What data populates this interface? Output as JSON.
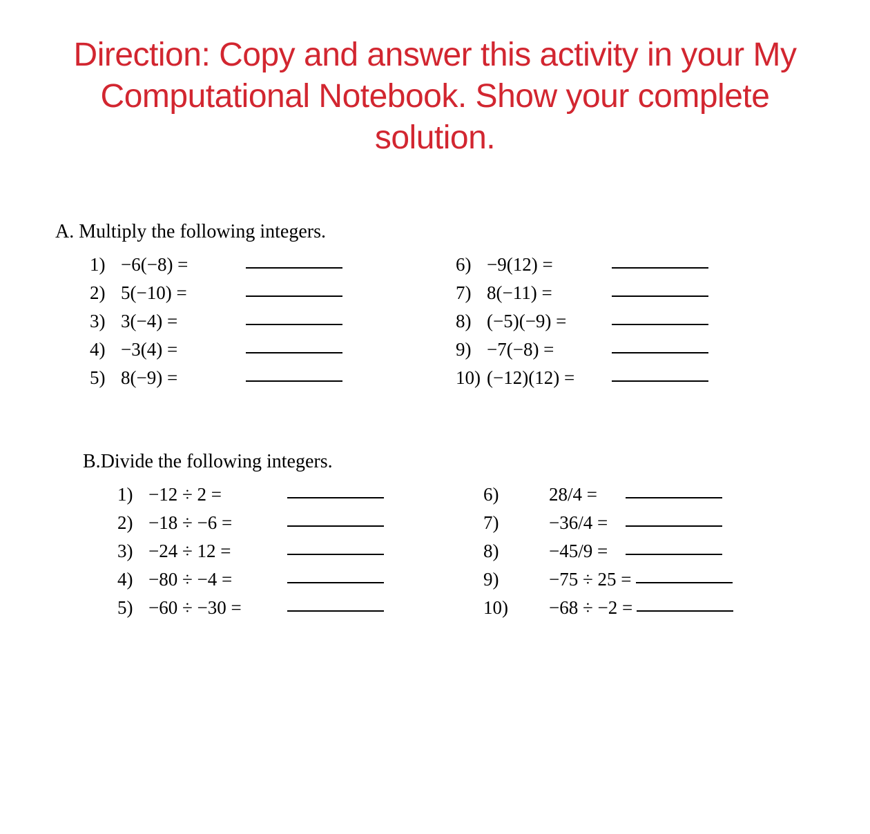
{
  "direction": {
    "text": "Direction: Copy and answer this activity in your My Computational Notebook. Show your complete solution.",
    "color": "#d22630",
    "fontsize": 48,
    "font_family": "Helvetica Neue"
  },
  "sections": {
    "a": {
      "label": "A.",
      "title": "Multiply the following integers.",
      "left_problems": [
        {
          "num": "1)",
          "expr": "−6(−8) ="
        },
        {
          "num": "2)",
          "expr": "5(−10) ="
        },
        {
          "num": "3)",
          "expr": "3(−4) ="
        },
        {
          "num": "4)",
          "expr": "−3(4) ="
        },
        {
          "num": "5)",
          "expr": "8(−9) ="
        }
      ],
      "right_problems": [
        {
          "num": "6)",
          "expr": "−9(12) ="
        },
        {
          "num": "7)",
          "expr": "8(−11) ="
        },
        {
          "num": "8)",
          "expr": "(−5)(−9) ="
        },
        {
          "num": "9)",
          "expr": "−7(−8) ="
        },
        {
          "num": "10)",
          "expr": "(−12)(12) ="
        }
      ]
    },
    "b": {
      "label": "B.",
      "title": "Divide the following integers.",
      "left_problems": [
        {
          "num": "1)",
          "expr": "−12 ÷ 2 ="
        },
        {
          "num": "2)",
          "expr": "−18 ÷ −6 ="
        },
        {
          "num": "3)",
          "expr": "−24 ÷ 12 ="
        },
        {
          "num": "4)",
          "expr": "−80 ÷ −4 ="
        },
        {
          "num": "5)",
          "expr": "−60 ÷ −30 ="
        }
      ],
      "right_problems": [
        {
          "num": "6)",
          "expr": "28/4 ="
        },
        {
          "num": "7)",
          "expr": "−36/4 ="
        },
        {
          "num": "8)",
          "expr": "−45/9 ="
        },
        {
          "num": "9)",
          "expr": "−75 ÷ 25 ="
        },
        {
          "num": "10)",
          "expr": "−68 ÷ −2 ="
        }
      ]
    }
  },
  "styling": {
    "background_color": "#ffffff",
    "text_color": "#000000",
    "body_fontsize": 27,
    "body_font_family": "Georgia",
    "header_fontsize": 28,
    "blank_line_width": 140,
    "blank_line_color": "#000000"
  }
}
